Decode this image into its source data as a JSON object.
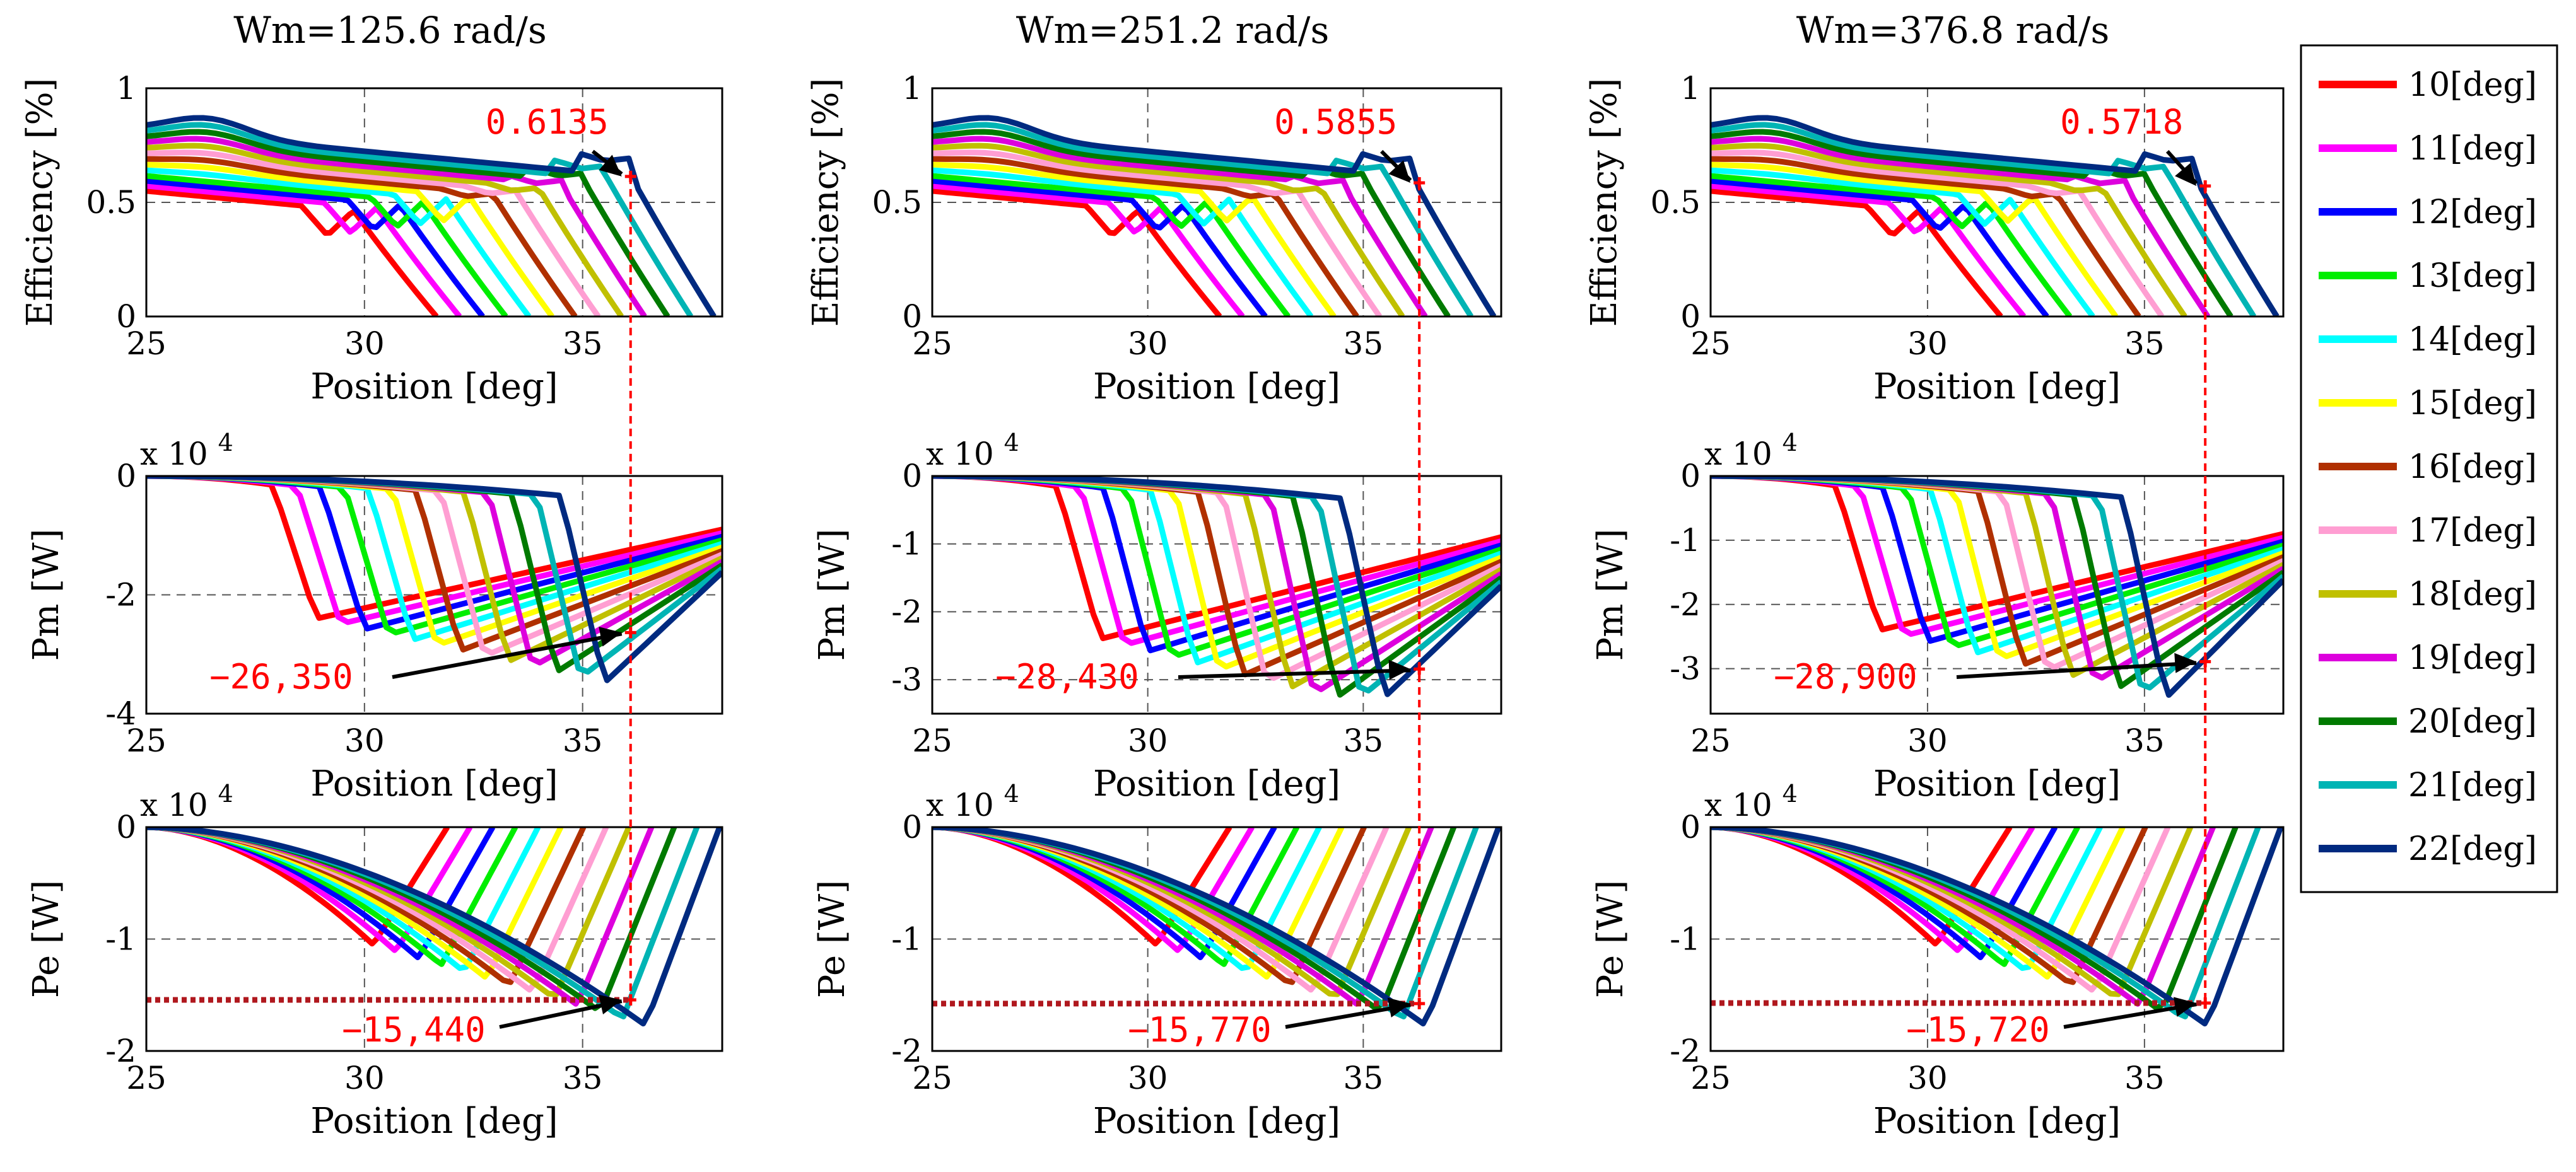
{
  "columns": [
    {
      "title": "Wm=125.6 rad/s",
      "annotations": {
        "efficiency": "0.6135",
        "pm": "−26,350",
        "pe": "−15,440"
      },
      "peak": {
        "position": 36.1,
        "efficiency": 0.6135,
        "pm": -2.635,
        "pe": -1.544
      }
    },
    {
      "title": "Wm=251.2 rad/s",
      "annotations": {
        "efficiency": "0.5855",
        "pm": "−28,430",
        "pe": "−15,770"
      },
      "peak": {
        "position": 36.3,
        "efficiency": 0.5855,
        "pm": -2.843,
        "pe": -1.577
      }
    },
    {
      "title": "Wm=376.8 rad/s",
      "annotations": {
        "efficiency": "0.5718",
        "pm": "−28,900",
        "pe": "−15,720"
      },
      "peak": {
        "position": 36.4,
        "efficiency": 0.5718,
        "pm": -2.89,
        "pe": -1.572
      }
    }
  ],
  "legend": {
    "entries": [
      {
        "label": "10[deg]",
        "color": "#ff0000"
      },
      {
        "label": "11[deg]",
        "color": "#ff00ff"
      },
      {
        "label": "12[deg]",
        "color": "#0000ff"
      },
      {
        "label": "13[deg]",
        "color": "#00ee00"
      },
      {
        "label": "14[deg]",
        "color": "#00ffff"
      },
      {
        "label": "15[deg]",
        "color": "#ffff00"
      },
      {
        "label": "16[deg]",
        "color": "#b03000"
      },
      {
        "label": "17[deg]",
        "color": "#ff9ed2"
      },
      {
        "label": "18[deg]",
        "color": "#c0c000"
      },
      {
        "label": "19[deg]",
        "color": "#dd00dd"
      },
      {
        "label": "20[deg]",
        "color": "#007a00"
      },
      {
        "label": "21[deg]",
        "color": "#00b4b4"
      },
      {
        "label": "22[deg]",
        "color": "#002a80"
      }
    ]
  },
  "chart_data": [
    {
      "type": "line",
      "column": 0,
      "title": "Wm=125.6 rad/s",
      "xlabel": "Position [deg]",
      "ylabel": "Efficiency [%]",
      "xlim": [
        25,
        38.2
      ],
      "ylim": [
        0,
        1
      ],
      "xticks": [
        "25",
        "30",
        "35"
      ],
      "yticks": [
        "0",
        "0.5",
        "1"
      ],
      "grid": true,
      "multiplier": "",
      "series_note": "13 curves, turn-off angle 10..22 deg; each rises to a broad hump near 26 deg, dips, then rises again and falls to zero near 31.7..38 deg",
      "highlight": {
        "x": 36.1,
        "y": 0.6135,
        "label": "0.6135"
      }
    },
    {
      "type": "line",
      "column": 0,
      "xlabel": "Position [deg]",
      "ylabel": "Pm [W]",
      "xlim": [
        25,
        38.2
      ],
      "ylim": [
        -4,
        0
      ],
      "xticks": [
        "25",
        "30",
        "35"
      ],
      "yticks": [
        "-4",
        "-2",
        "0"
      ],
      "grid": true,
      "multiplier": "x 10^4",
      "highlight": {
        "x": 36.1,
        "y": -2.635,
        "label": "−26,350"
      }
    },
    {
      "type": "line",
      "column": 0,
      "xlabel": "Position [deg]",
      "ylabel": "Pe [W]",
      "xlim": [
        25,
        38.2
      ],
      "ylim": [
        -2,
        0
      ],
      "xticks": [
        "25",
        "30",
        "35"
      ],
      "yticks": [
        "-2",
        "-1",
        "0"
      ],
      "grid": true,
      "multiplier": "x 10^4",
      "highlight": {
        "x": 36.1,
        "y": -1.544,
        "label": "−15,440"
      }
    },
    {
      "type": "line",
      "column": 1,
      "title": "Wm=251.2 rad/s",
      "xlabel": "Position [deg]",
      "ylabel": "Efficiency [%]",
      "xlim": [
        25,
        38.2
      ],
      "ylim": [
        0,
        1
      ],
      "xticks": [
        "25",
        "30",
        "35"
      ],
      "yticks": [
        "0",
        "0.5",
        "1"
      ],
      "grid": true,
      "multiplier": "",
      "highlight": {
        "x": 36.3,
        "y": 0.5855,
        "label": "0.5855"
      }
    },
    {
      "type": "line",
      "column": 1,
      "xlabel": "Position [deg]",
      "ylabel": "Pm [W]",
      "xlim": [
        25,
        38.2
      ],
      "ylim": [
        -3.5,
        0
      ],
      "xticks": [
        "25",
        "30",
        "35"
      ],
      "yticks": [
        "-3",
        "-2",
        "-1",
        "0"
      ],
      "grid": true,
      "multiplier": "x 10^4",
      "highlight": {
        "x": 36.3,
        "y": -2.843,
        "label": "−28,430"
      }
    },
    {
      "type": "line",
      "column": 1,
      "xlabel": "Position [deg]",
      "ylabel": "Pe [W]",
      "xlim": [
        25,
        38.2
      ],
      "ylim": [
        -2,
        0
      ],
      "xticks": [
        "25",
        "30",
        "35"
      ],
      "yticks": [
        "-2",
        "-1",
        "0"
      ],
      "grid": true,
      "multiplier": "x 10^4",
      "highlight": {
        "x": 36.3,
        "y": -1.577,
        "label": "−15,770"
      }
    },
    {
      "type": "line",
      "column": 2,
      "title": "Wm=376.8 rad/s",
      "xlabel": "Position [deg]",
      "ylabel": "Efficiency [%]",
      "xlim": [
        25,
        38.2
      ],
      "ylim": [
        0,
        1
      ],
      "xticks": [
        "25",
        "30",
        "35"
      ],
      "yticks": [
        "0",
        "0.5",
        "1"
      ],
      "grid": true,
      "multiplier": "",
      "highlight": {
        "x": 36.4,
        "y": 0.5718,
        "label": "0.5718"
      }
    },
    {
      "type": "line",
      "column": 2,
      "xlabel": "Position [deg]",
      "ylabel": "Pm [W]",
      "xlim": [
        25,
        38.2
      ],
      "ylim": [
        -3.7,
        0
      ],
      "xticks": [
        "25",
        "30",
        "35"
      ],
      "yticks": [
        "-3",
        "-2",
        "-1",
        "0"
      ],
      "grid": true,
      "multiplier": "x 10^4",
      "highlight": {
        "x": 36.4,
        "y": -2.89,
        "label": "−28,900"
      }
    },
    {
      "type": "line",
      "column": 2,
      "xlabel": "Position [deg]",
      "ylabel": "Pe [W]",
      "xlim": [
        25,
        38.2
      ],
      "ylim": [
        -2,
        0
      ],
      "xticks": [
        "25",
        "30",
        "35"
      ],
      "yticks": [
        "-2",
        "-1",
        "0"
      ],
      "grid": true,
      "multiplier": "x 10^4",
      "highlight": {
        "x": 36.4,
        "y": -1.572,
        "label": "−15,720"
      }
    }
  ]
}
